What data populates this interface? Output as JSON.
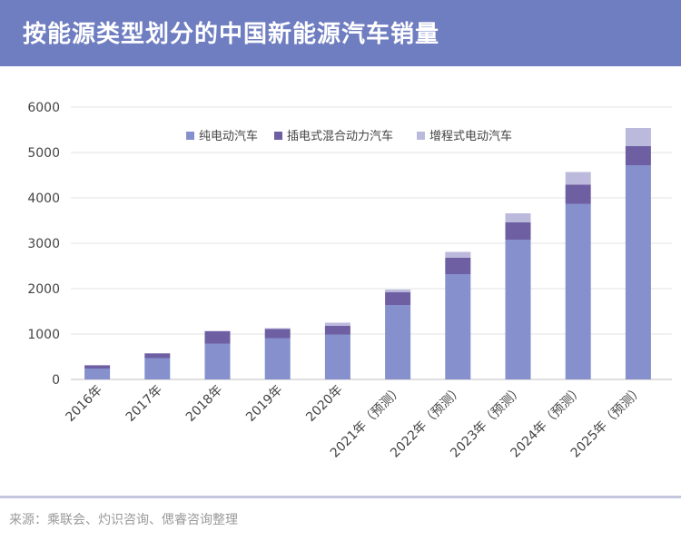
{
  "header": {
    "title": "按能源类型划分的中国新能源汽车销量"
  },
  "footer": {
    "source": "来源：乘联会、灼识咨询、偲睿咨询整理"
  },
  "colors": {
    "header_bg": "#6f7dc1",
    "bev": "#8690cc",
    "phev": "#6d5fa2",
    "erev": "#bcbadc"
  },
  "chart_data": {
    "type": "bar",
    "stacked": true,
    "categories": [
      "2016年",
      "2017年",
      "2018年",
      "2019年",
      "2020年",
      "2021年（预测）",
      "2022年（预测）",
      "2023年（预测）",
      "2024年（预测）",
      "2025年（预测）"
    ],
    "series": [
      {
        "name": "纯电动汽车",
        "color": "#8690cc",
        "values": [
          240,
          470,
          790,
          910,
          990,
          1640,
          2320,
          3080,
          3870,
          4720
        ]
      },
      {
        "name": "插电式混合动力汽车",
        "color": "#6d5fa2",
        "values": [
          70,
          100,
          270,
          200,
          190,
          280,
          360,
          380,
          420,
          420
        ]
      },
      {
        "name": "增程式电动汽车",
        "color": "#bcbadc",
        "values": [
          5,
          10,
          10,
          20,
          70,
          60,
          130,
          200,
          280,
          400
        ]
      }
    ],
    "ylim": [
      0,
      6000
    ],
    "yticks": [
      0,
      1000,
      2000,
      3000,
      4000,
      5000,
      6000
    ],
    "xlabel": "",
    "ylabel": "",
    "grid": true,
    "legend": "top"
  }
}
